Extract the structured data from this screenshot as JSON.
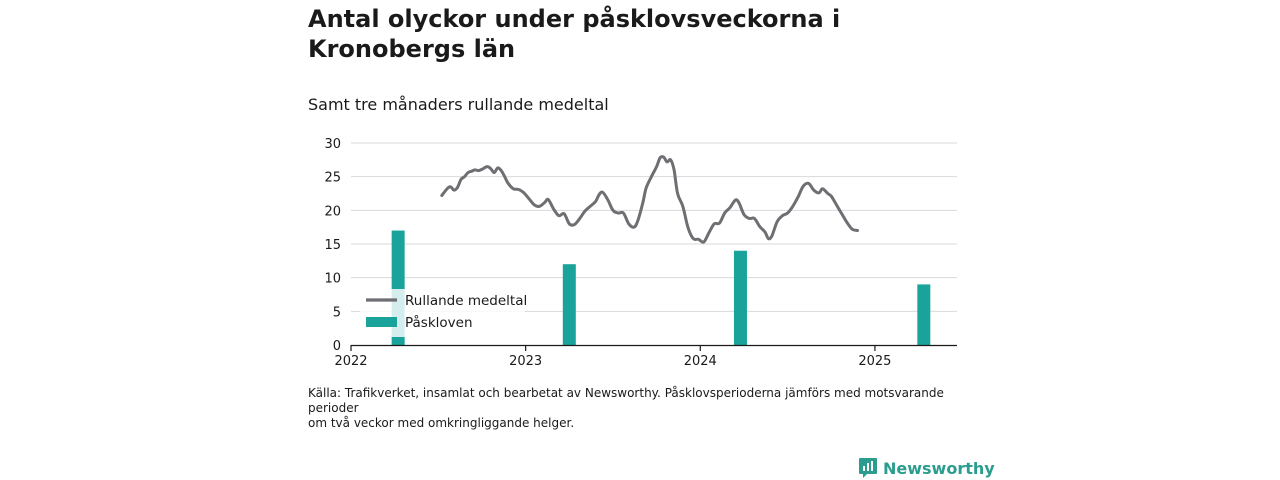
{
  "header": {
    "title": "Antal olyckor under påsklovsveckorna i Kronobergs län",
    "subtitle": "Samt tre månaders rullande medeltal"
  },
  "footer": {
    "source_line1": "Källa: Trafikverket, insamlat och bearbetat av Newsworthy. Påsklovsperioderna jämförs med motsvarande perioder",
    "source_line2": "om två veckor med omkringliggande helger.",
    "brand": "Newsworthy"
  },
  "colors": {
    "line": "#6e6e73",
    "bars": "#1aa39a",
    "grid": "#d9d9d9",
    "brand": "#2a9d8f"
  },
  "chart_data": {
    "type": "bar",
    "title": "Antal olyckor under påsklovsveckorna i Kronobergs län",
    "subtitle": "Samt tre månaders rullande medeltal",
    "xlabel": "",
    "ylabel": "",
    "ylim": [
      0,
      30
    ],
    "yticks": [
      0,
      5,
      10,
      15,
      20,
      25,
      30
    ],
    "xlim": [
      2022.0,
      2025.47
    ],
    "xticks": [
      2022,
      2023,
      2024,
      2025
    ],
    "xtick_labels": [
      "2022",
      "2023",
      "2024",
      "2025"
    ],
    "grid": true,
    "legend_position": "bottom-left",
    "legend": [
      "Rullande medeltal",
      "Påskloven"
    ],
    "series": [
      {
        "name": "Påskloven",
        "type": "bar",
        "x": [
          2022.27,
          2023.25,
          2024.23,
          2025.28
        ],
        "values": [
          17,
          12,
          14,
          9
        ]
      },
      {
        "name": "Rullande medeltal",
        "type": "line",
        "points": [
          [
            2022.52,
            22.2
          ],
          [
            2022.55,
            23.2
          ],
          [
            2022.57,
            23.5
          ],
          [
            2022.59,
            23.0
          ],
          [
            2022.61,
            23.4
          ],
          [
            2022.63,
            24.6
          ],
          [
            2022.65,
            25.0
          ],
          [
            2022.67,
            25.6
          ],
          [
            2022.69,
            25.8
          ],
          [
            2022.71,
            26.0
          ],
          [
            2022.73,
            25.9
          ],
          [
            2022.75,
            26.1
          ],
          [
            2022.78,
            26.5
          ],
          [
            2022.8,
            26.2
          ],
          [
            2022.82,
            25.6
          ],
          [
            2022.84,
            26.3
          ],
          [
            2022.86,
            25.9
          ],
          [
            2022.88,
            25.0
          ],
          [
            2022.9,
            24.0
          ],
          [
            2022.93,
            23.2
          ],
          [
            2022.96,
            23.1
          ],
          [
            2022.99,
            22.6
          ],
          [
            2023.02,
            21.7
          ],
          [
            2023.05,
            20.8
          ],
          [
            2023.08,
            20.6
          ],
          [
            2023.11,
            21.2
          ],
          [
            2023.13,
            21.6
          ],
          [
            2023.16,
            20.2
          ],
          [
            2023.19,
            19.2
          ],
          [
            2023.22,
            19.5
          ],
          [
            2023.25,
            18.0
          ],
          [
            2023.28,
            17.9
          ],
          [
            2023.31,
            18.8
          ],
          [
            2023.34,
            19.9
          ],
          [
            2023.37,
            20.6
          ],
          [
            2023.4,
            21.3
          ],
          [
            2023.42,
            22.3
          ],
          [
            2023.44,
            22.7
          ],
          [
            2023.47,
            21.6
          ],
          [
            2023.5,
            20.0
          ],
          [
            2023.53,
            19.6
          ],
          [
            2023.56,
            19.6
          ],
          [
            2023.59,
            18.0
          ],
          [
            2023.62,
            17.5
          ],
          [
            2023.64,
            18.3
          ],
          [
            2023.67,
            21.0
          ],
          [
            2023.69,
            23.3
          ],
          [
            2023.72,
            25.0
          ],
          [
            2023.75,
            26.5
          ],
          [
            2023.77,
            27.8
          ],
          [
            2023.79,
            27.9
          ],
          [
            2023.81,
            27.2
          ],
          [
            2023.83,
            27.5
          ],
          [
            2023.85,
            26.0
          ],
          [
            2023.87,
            22.5
          ],
          [
            2023.9,
            20.6
          ],
          [
            2023.93,
            17.4
          ],
          [
            2023.96,
            15.8
          ],
          [
            2023.99,
            15.7
          ],
          [
            2024.02,
            15.3
          ],
          [
            2024.05,
            16.7
          ],
          [
            2024.08,
            18.0
          ],
          [
            2024.11,
            18.1
          ],
          [
            2024.14,
            19.6
          ],
          [
            2024.17,
            20.4
          ],
          [
            2024.2,
            21.5
          ],
          [
            2024.22,
            21.2
          ],
          [
            2024.25,
            19.4
          ],
          [
            2024.28,
            18.8
          ],
          [
            2024.31,
            18.8
          ],
          [
            2024.34,
            17.6
          ],
          [
            2024.37,
            16.8
          ],
          [
            2024.39,
            15.8
          ],
          [
            2024.41,
            16.2
          ],
          [
            2024.44,
            18.3
          ],
          [
            2024.47,
            19.2
          ],
          [
            2024.5,
            19.6
          ],
          [
            2024.53,
            20.6
          ],
          [
            2024.56,
            22.0
          ],
          [
            2024.59,
            23.6
          ],
          [
            2024.62,
            24.0
          ],
          [
            2024.65,
            23.0
          ],
          [
            2024.68,
            22.6
          ],
          [
            2024.7,
            23.2
          ],
          [
            2024.73,
            22.5
          ],
          [
            2024.75,
            22.1
          ],
          [
            2024.78,
            20.8
          ],
          [
            2024.81,
            19.5
          ],
          [
            2024.84,
            18.2
          ],
          [
            2024.87,
            17.2
          ],
          [
            2024.9,
            17.0
          ]
        ]
      }
    ]
  }
}
